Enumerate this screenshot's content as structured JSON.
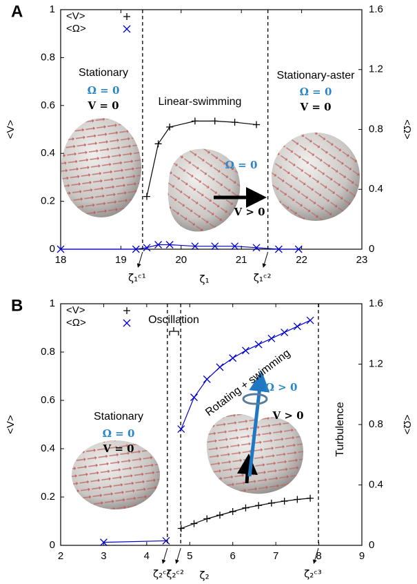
{
  "chart_data": [
    {
      "type": "line",
      "panel_label": "A",
      "x_label": "ζ₁",
      "y_label": "<V>",
      "y2_label": "<Ω>",
      "xlim": [
        18,
        23
      ],
      "xticks": [
        18,
        19,
        20,
        21,
        22,
        23
      ],
      "ylim": [
        0,
        1
      ],
      "yticks": [
        0,
        0.2,
        0.4,
        0.6,
        0.8,
        1
      ],
      "y2lim": [
        0,
        1.6
      ],
      "y2ticks": [
        0,
        0.4,
        0.8,
        1.2,
        1.6
      ],
      "legend": "upper left",
      "series": [
        {
          "name": "<V>",
          "color": "#000000",
          "marker": "+",
          "x": [
            19.43,
            19.62,
            19.81,
            20.23,
            20.56,
            20.89,
            21.25
          ],
          "values": [
            0.22,
            0.44,
            0.51,
            0.535,
            0.535,
            0.53,
            0.52
          ]
        },
        {
          "name": "<Ω>",
          "color": "#0000cc",
          "marker": "x",
          "axis": "y2",
          "x": [
            18,
            19.25,
            19.43,
            19.62,
            19.81,
            20.23,
            20.56,
            20.89,
            21.25,
            21.62,
            21.95
          ],
          "values": [
            0,
            0,
            0.01,
            0.03,
            0.03,
            0.02,
            0.02,
            0.02,
            0.01,
            0,
            0
          ]
        }
      ],
      "critical_points": [
        {
          "value": 19.36,
          "label": "ζ₁ᶜ¹"
        },
        {
          "value": 21.44,
          "label": "ζ₁ᶜ²"
        }
      ],
      "annotations": [
        "Stationary",
        "Ω = 0",
        "V = 0",
        "Linear-swimming",
        "Ω = 0",
        "V > 0",
        "Stationary-aster",
        "Ω = 0",
        "V = 0"
      ]
    },
    {
      "type": "line",
      "panel_label": "B",
      "x_label": "ζ₂",
      "y_label": "<V>",
      "y2_label": "<Ω>",
      "xlim": [
        2,
        9
      ],
      "xticks": [
        2,
        3,
        4,
        5,
        6,
        7,
        8,
        9
      ],
      "ylim": [
        0,
        1
      ],
      "yticks": [
        0,
        0.2,
        0.4,
        0.6,
        0.8,
        1
      ],
      "y2lim": [
        0,
        1.6
      ],
      "y2ticks": [
        0,
        0.4,
        0.8,
        1.2,
        1.6
      ],
      "legend": "upper left",
      "series": [
        {
          "name": "<V>",
          "color": "#000000",
          "marker": "+",
          "x": [
            4.8,
            5.1,
            5.4,
            5.7,
            6.0,
            6.3,
            6.6,
            6.9,
            7.2,
            7.5,
            7.8
          ],
          "values": [
            0.07,
            0.09,
            0.11,
            0.125,
            0.14,
            0.155,
            0.165,
            0.175,
            0.183,
            0.19,
            0.195
          ]
        },
        {
          "name": "<Ω>",
          "color": "#0000cc",
          "marker": "x",
          "axis": "y2",
          "x": [
            3,
            4.45,
            null,
            4.8,
            5.1,
            5.4,
            5.7,
            6.0,
            6.3,
            6.6,
            6.9,
            7.2,
            7.5,
            7.8
          ],
          "values": [
            0.02,
            0.03,
            null,
            0.77,
            0.98,
            1.1,
            1.18,
            1.24,
            1.29,
            1.33,
            1.37,
            1.41,
            1.45,
            1.49
          ]
        }
      ],
      "critical_points": [
        {
          "value": 4.48,
          "label": "ζ₂ᶜ¹"
        },
        {
          "value": 4.79,
          "label": "ζ₂ᶜ²"
        },
        {
          "value": 7.99,
          "label": "ζ₂ᶜ³"
        }
      ],
      "annotations": [
        "Oscillation",
        "Rotating + swimming",
        "Stationary",
        "Ω = 0",
        "V = 0",
        "Ω > 0",
        "V > 0",
        "Turbulence"
      ]
    }
  ]
}
